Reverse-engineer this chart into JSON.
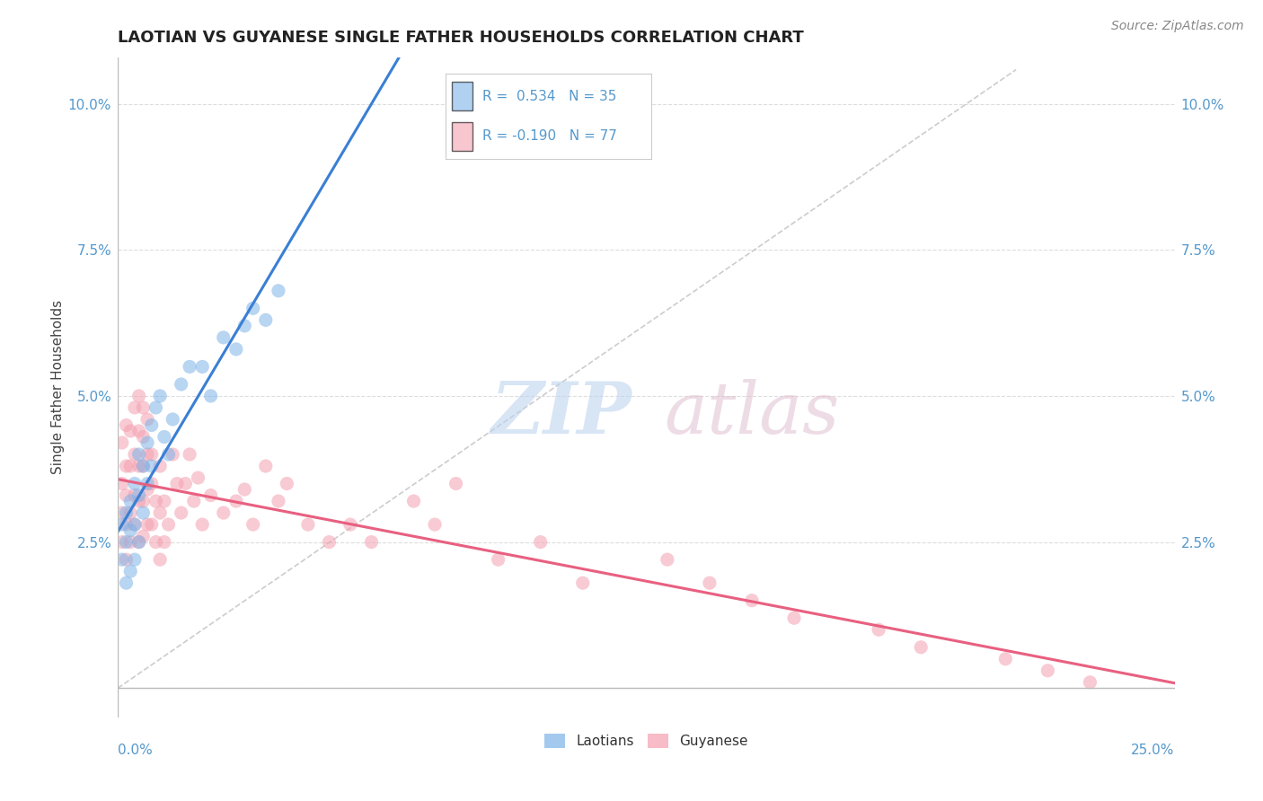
{
  "title": "LAOTIAN VS GUYANESE SINGLE FATHER HOUSEHOLDS CORRELATION CHART",
  "source_text": "Source: ZipAtlas.com",
  "ylabel": "Single Father Households",
  "R_blue": 0.534,
  "N_blue": 35,
  "R_pink": -0.19,
  "N_pink": 77,
  "blue_color": "#7EB3E8",
  "pink_color": "#F4A0B0",
  "blue_line_color": "#3A7FD4",
  "pink_line_color": "#E86080",
  "dashed_line_color": "#C0C0C0",
  "background_color": "#FFFFFF",
  "grid_color": "#DDDDDD",
  "title_color": "#222222",
  "axis_label_color": "#5599CC",
  "legend_blue_label": "Laotians",
  "legend_pink_label": "Guyanese",
  "xmin": 0.0,
  "xmax": 0.25,
  "ymin": -0.005,
  "ymax": 0.108,
  "laotian_x": [
    0.001,
    0.001,
    0.002,
    0.002,
    0.002,
    0.003,
    0.003,
    0.003,
    0.004,
    0.004,
    0.004,
    0.005,
    0.005,
    0.005,
    0.006,
    0.006,
    0.007,
    0.007,
    0.008,
    0.008,
    0.009,
    0.01,
    0.011,
    0.012,
    0.013,
    0.015,
    0.017,
    0.02,
    0.022,
    0.025,
    0.028,
    0.03,
    0.032,
    0.035,
    0.038
  ],
  "laotian_y": [
    0.022,
    0.028,
    0.025,
    0.03,
    0.018,
    0.027,
    0.032,
    0.02,
    0.035,
    0.028,
    0.022,
    0.04,
    0.033,
    0.025,
    0.038,
    0.03,
    0.042,
    0.035,
    0.045,
    0.038,
    0.048,
    0.05,
    0.043,
    0.04,
    0.046,
    0.052,
    0.055,
    0.055,
    0.05,
    0.06,
    0.058,
    0.062,
    0.065,
    0.063,
    0.068
  ],
  "guyanese_x": [
    0.001,
    0.001,
    0.001,
    0.001,
    0.002,
    0.002,
    0.002,
    0.002,
    0.002,
    0.003,
    0.003,
    0.003,
    0.003,
    0.004,
    0.004,
    0.004,
    0.004,
    0.005,
    0.005,
    0.005,
    0.005,
    0.005,
    0.006,
    0.006,
    0.006,
    0.006,
    0.006,
    0.007,
    0.007,
    0.007,
    0.007,
    0.008,
    0.008,
    0.008,
    0.009,
    0.009,
    0.01,
    0.01,
    0.01,
    0.011,
    0.011,
    0.012,
    0.013,
    0.014,
    0.015,
    0.016,
    0.017,
    0.018,
    0.019,
    0.02,
    0.022,
    0.025,
    0.028,
    0.03,
    0.032,
    0.035,
    0.038,
    0.04,
    0.045,
    0.05,
    0.055,
    0.06,
    0.07,
    0.075,
    0.08,
    0.09,
    0.1,
    0.11,
    0.13,
    0.14,
    0.15,
    0.16,
    0.18,
    0.19,
    0.21,
    0.22,
    0.23
  ],
  "guyanese_y": [
    0.025,
    0.03,
    0.035,
    0.042,
    0.022,
    0.028,
    0.033,
    0.038,
    0.045,
    0.025,
    0.03,
    0.038,
    0.044,
    0.028,
    0.033,
    0.04,
    0.048,
    0.025,
    0.032,
    0.038,
    0.044,
    0.05,
    0.026,
    0.032,
    0.038,
    0.043,
    0.048,
    0.028,
    0.034,
    0.04,
    0.046,
    0.028,
    0.035,
    0.04,
    0.025,
    0.032,
    0.022,
    0.03,
    0.038,
    0.025,
    0.032,
    0.028,
    0.04,
    0.035,
    0.03,
    0.035,
    0.04,
    0.032,
    0.036,
    0.028,
    0.033,
    0.03,
    0.032,
    0.034,
    0.028,
    0.038,
    0.032,
    0.035,
    0.028,
    0.025,
    0.028,
    0.025,
    0.032,
    0.028,
    0.035,
    0.022,
    0.025,
    0.018,
    0.022,
    0.018,
    0.015,
    0.012,
    0.01,
    0.007,
    0.005,
    0.003,
    0.001
  ]
}
